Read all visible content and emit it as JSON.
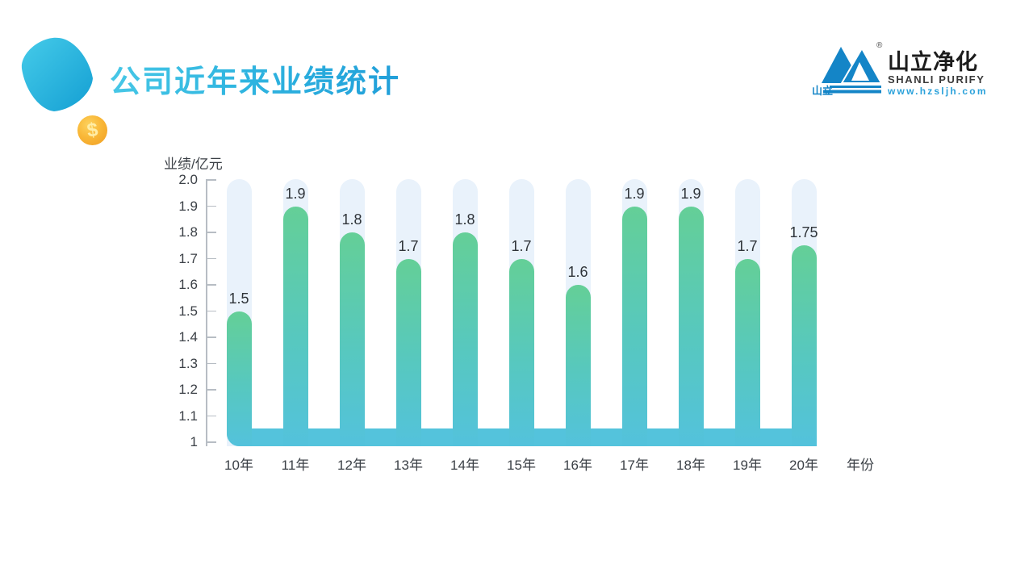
{
  "slide": {
    "title": "公司近年来业绩统计"
  },
  "logo": {
    "brand_cn": "山立净化",
    "brand_en": "SHANLI PURIFY",
    "website": "www.hzsljh.com",
    "icon_label": "山立",
    "registered_mark": "®",
    "blue": "#1485c7"
  },
  "decor": {
    "coin_symbol": "$"
  },
  "chart_data": {
    "type": "bar",
    "title": "",
    "ylabel": "业绩/亿元",
    "xlabel": "年份",
    "categories": [
      "10年",
      "11年",
      "12年",
      "13年",
      "14年",
      "15年",
      "16年",
      "17年",
      "18年",
      "19年",
      "20年"
    ],
    "values": [
      1.5,
      1.9,
      1.8,
      1.7,
      1.8,
      1.7,
      1.6,
      1.9,
      1.9,
      1.7,
      1.75
    ],
    "value_labels": [
      "1.5",
      "1.9",
      "1.8",
      "1.7",
      "1.8",
      "1.7",
      "1.6",
      "1.9",
      "1.9",
      "1.7",
      "1.75"
    ],
    "ylim": [
      1,
      2
    ],
    "ytick_labels": [
      "2.0",
      "1.9",
      "1.8",
      "1.7",
      "1.6",
      "1.5",
      "1.4",
      "1.3",
      "1.2",
      "1.1",
      "1"
    ],
    "grid": false,
    "legend": null,
    "colors": {
      "bar_top": "#64cf97",
      "bar_bottom": "#53c2dc",
      "track": "#e9f2fb",
      "baseline_band": "#54c3dc",
      "axis": "#b7bdc4",
      "label": "#3c4147"
    }
  }
}
